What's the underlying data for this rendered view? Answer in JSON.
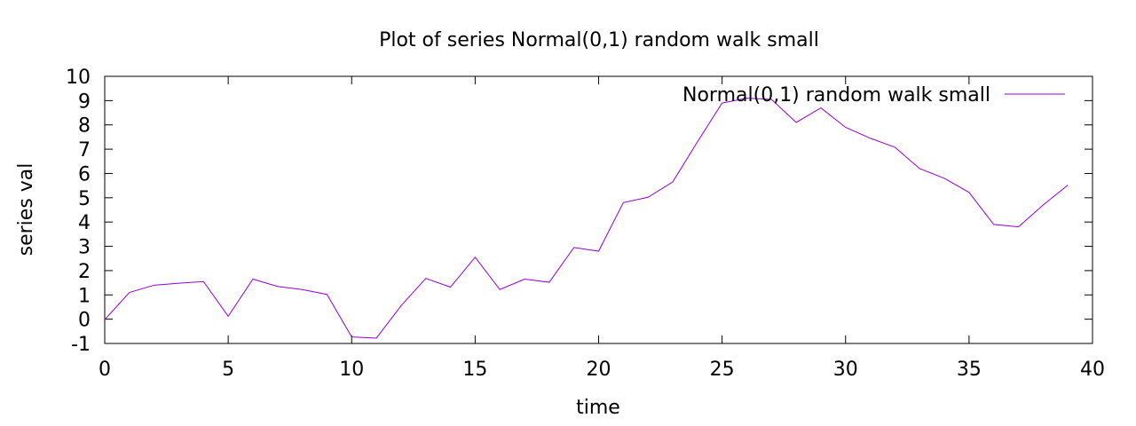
{
  "chart_data": {
    "type": "line",
    "title": "Plot of series Normal(0,1) random walk small",
    "xlabel": "time",
    "ylabel": "series val",
    "xlim": [
      0,
      40
    ],
    "ylim": [
      -1,
      10
    ],
    "xticks": [
      0,
      5,
      10,
      15,
      20,
      25,
      30,
      35,
      40
    ],
    "yticks": [
      -1,
      0,
      1,
      2,
      3,
      4,
      5,
      6,
      7,
      8,
      9,
      10
    ],
    "grid": false,
    "legend": "top-right",
    "series": [
      {
        "name": "Normal(0,1) random walk small",
        "color": "#9400d3",
        "x": [
          0,
          1,
          2,
          3,
          4,
          5,
          6,
          7,
          8,
          9,
          10,
          11,
          12,
          13,
          14,
          15,
          16,
          17,
          18,
          19,
          20,
          21,
          22,
          23,
          24,
          25,
          26,
          27,
          28,
          29,
          30,
          31,
          32,
          33,
          34,
          35,
          36,
          37,
          38,
          39
        ],
        "y": [
          -0.02,
          1.1,
          1.4,
          1.48,
          1.55,
          0.12,
          1.65,
          1.35,
          1.22,
          1.02,
          -0.73,
          -0.78,
          0.55,
          1.68,
          1.32,
          2.55,
          1.22,
          1.65,
          1.52,
          2.95,
          2.8,
          4.8,
          5.02,
          5.65,
          7.3,
          8.9,
          9.1,
          9.05,
          8.1,
          8.7,
          7.9,
          7.45,
          7.08,
          6.2,
          5.8,
          5.22,
          3.9,
          3.8,
          4.7,
          5.52
        ]
      }
    ]
  }
}
